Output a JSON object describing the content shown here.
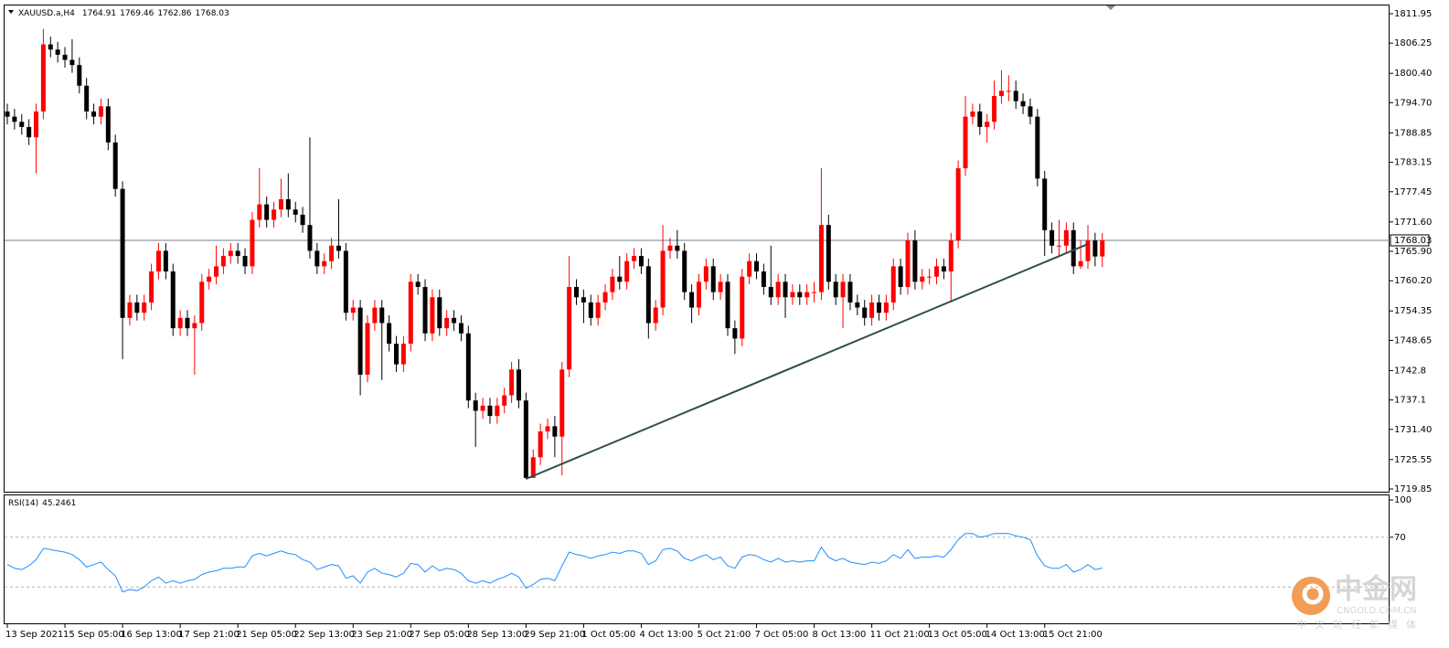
{
  "chart_data": [
    {
      "type": "candlestick",
      "symbol": "XAUUSD.a,H4",
      "categories": [
        "13 Sep 2021",
        null,
        null,
        null,
        null,
        null,
        null,
        null,
        "15 Sep 05:00",
        null,
        null,
        null,
        null,
        null,
        null,
        null,
        "16 Sep 13:00",
        null,
        null,
        null,
        null,
        null,
        null,
        null,
        "17 Sep 21:00",
        null,
        null,
        null,
        null,
        null,
        null,
        null,
        "21 Sep 05:00",
        null,
        null,
        null,
        null,
        null,
        null,
        null,
        "22 Sep 13:00",
        null,
        null,
        null,
        null,
        null,
        null,
        null,
        "23 Sep 21:00",
        null,
        null,
        null,
        null,
        null,
        null,
        null,
        "27 Sep 05:00",
        null,
        null,
        null,
        null,
        null,
        null,
        null,
        "28 Sep 13:00",
        null,
        null,
        null,
        null,
        null,
        null,
        null,
        "29 Sep 21:00",
        null,
        null,
        null,
        null,
        null,
        null,
        null,
        "1 Oct 05:00",
        null,
        null,
        null,
        null,
        null,
        null,
        null,
        "4 Oct 13:00",
        null,
        null,
        null,
        null,
        null,
        null,
        null,
        "5 Oct 21:00",
        null,
        null,
        null,
        null,
        null,
        null,
        null,
        "7 Oct 05:00",
        null,
        null,
        null,
        null,
        null,
        null,
        null,
        "8 Oct 13:00",
        null,
        null,
        null,
        null,
        null,
        null,
        null,
        "11 Oct 21:00",
        null,
        null,
        null,
        null,
        null,
        null,
        null,
        "13 Oct 05:00",
        null,
        null,
        null,
        null,
        null,
        null,
        null,
        "14 Oct 13:00",
        null,
        null,
        null,
        null,
        null,
        null,
        null,
        "15 Oct 21:00",
        null,
        null,
        null,
        null,
        null,
        null,
        null,
        null
      ],
      "open": [
        1793,
        1792,
        1791,
        1790,
        1788,
        1793,
        1806,
        1805,
        1804,
        1803,
        1802,
        1798,
        1793,
        1792,
        1794,
        1787,
        1778,
        1753,
        1756,
        1754,
        1756,
        1762,
        1766,
        1762,
        1751,
        1753,
        1751,
        1752,
        1760,
        1761,
        1763,
        1765,
        1766,
        1765,
        1763,
        1772,
        1775,
        1772,
        1774,
        1776,
        1774,
        1773,
        1771,
        1766,
        1763,
        1764,
        1767,
        1766,
        1754,
        1755,
        1742,
        1752,
        1755,
        1752,
        1748,
        1744,
        1748,
        1760,
        1759,
        1750,
        1757,
        1751,
        1753,
        1752,
        1750,
        1737,
        1735,
        1736,
        1734,
        1736,
        1738,
        1743,
        1737,
        1722,
        1726,
        1731,
        1732,
        1730,
        1743,
        1759,
        1757,
        1756,
        1753,
        1756,
        1758,
        1761,
        1760,
        1764,
        1765,
        1763,
        1752,
        1755,
        1766,
        1767,
        1766,
        1758,
        1755,
        1760,
        1763,
        1758,
        1760,
        1751,
        1749,
        1761,
        1764,
        1762,
        1759,
        1757,
        1760,
        1757,
        1758,
        1757,
        1758,
        1758,
        1771,
        1760,
        1757,
        1760,
        1756,
        1755,
        1753,
        1756,
        1754,
        1756,
        1763,
        1759,
        1768,
        1760,
        1761,
        1761,
        1763,
        1762,
        1768,
        1782,
        1792,
        1793,
        1790,
        1791,
        1796,
        1797,
        1797,
        1795,
        1794,
        1792,
        1780,
        1770,
        1767,
        1767,
        1770,
        1763,
        1764,
        1768,
        1764.91
      ],
      "high": [
        1794.5,
        1793.5,
        1792.5,
        1791.5,
        1794.5,
        1809,
        1807.5,
        1806.5,
        1805.5,
        1807,
        1803.5,
        1799.5,
        1794.5,
        1795.5,
        1795.5,
        1788.5,
        1779.5,
        1757.5,
        1757.5,
        1757.5,
        1763.5,
        1767.5,
        1767.5,
        1763.5,
        1754.5,
        1754.5,
        1753.5,
        1761.5,
        1762.5,
        1767,
        1766.5,
        1767.5,
        1767.5,
        1766.5,
        1773.5,
        1782,
        1776.5,
        1775.5,
        1780,
        1781,
        1775.5,
        1774.5,
        1788,
        1767.5,
        1765.5,
        1768.5,
        1776,
        1767.5,
        1756.5,
        1756.5,
        1753.5,
        1756.5,
        1756.5,
        1753.5,
        1749.5,
        1749.5,
        1761.5,
        1761.5,
        1760.5,
        1758.5,
        1758.5,
        1754.5,
        1754.5,
        1753.5,
        1751.5,
        1738.5,
        1737.5,
        1737.5,
        1737.5,
        1739.5,
        1744.5,
        1745,
        1738.5,
        1727.5,
        1732.5,
        1733.5,
        1734,
        1744.5,
        1765,
        1760.5,
        1758.5,
        1757.5,
        1757.5,
        1759.5,
        1762.5,
        1765,
        1765.5,
        1766.5,
        1766.5,
        1764.5,
        1756.5,
        1771,
        1768.5,
        1770,
        1767.5,
        1759.5,
        1761.5,
        1764.5,
        1764.5,
        1761.5,
        1761.5,
        1752.5,
        1762.5,
        1765.5,
        1765.5,
        1763.5,
        1767,
        1761.5,
        1761.5,
        1759.5,
        1759.5,
        1759.5,
        1760,
        1782,
        1773,
        1761.5,
        1761.5,
        1761.5,
        1757.5,
        1756.5,
        1757.5,
        1757.5,
        1757.5,
        1764.5,
        1764.5,
        1769.5,
        1770,
        1762.5,
        1762.5,
        1764.5,
        1764.5,
        1769.5,
        1783.5,
        1796,
        1794.5,
        1794.5,
        1792.5,
        1799,
        1801,
        1800,
        1799,
        1796.5,
        1795.5,
        1793.5,
        1781.5,
        1771.5,
        1772,
        1771.5,
        1771.5,
        1768,
        1771,
        1769.5,
        1769.46
      ],
      "low": [
        1790.5,
        1789.5,
        1788.5,
        1786.5,
        1781,
        1791.5,
        1803.5,
        1802.5,
        1801.5,
        1800.5,
        1796.5,
        1791.5,
        1790.5,
        1790.5,
        1785.5,
        1776.5,
        1745,
        1751.5,
        1752.5,
        1752.5,
        1754.5,
        1760.5,
        1760.5,
        1749.5,
        1749.5,
        1749.5,
        1742,
        1750.5,
        1758.5,
        1759.5,
        1761.5,
        1763.5,
        1763.5,
        1761.5,
        1761.5,
        1770.5,
        1770.5,
        1770.5,
        1772.5,
        1772.5,
        1771.5,
        1769.5,
        1764.5,
        1761.5,
        1761.5,
        1762.5,
        1764.5,
        1752.5,
        1752.5,
        1738,
        1740.5,
        1750.5,
        1741,
        1746.5,
        1742.5,
        1742.5,
        1746.5,
        1757.5,
        1748.5,
        1748.5,
        1749.5,
        1749.5,
        1750.5,
        1748.5,
        1735.5,
        1728,
        1733.5,
        1732.5,
        1732.5,
        1734.5,
        1736.5,
        1735.5,
        1721.8,
        1722,
        1724.5,
        1729.5,
        1726,
        1722.5,
        1741.5,
        1755.5,
        1752,
        1751.5,
        1751.5,
        1754.5,
        1756.5,
        1758.5,
        1758.5,
        1762.5,
        1761.5,
        1749,
        1750.5,
        1753.5,
        1764.5,
        1764.5,
        1756.5,
        1752,
        1753.5,
        1758.5,
        1756.5,
        1756.5,
        1749.5,
        1746,
        1747.5,
        1759.5,
        1760.5,
        1757.5,
        1755.5,
        1755.5,
        1753,
        1755.5,
        1755.5,
        1755.5,
        1756,
        1756.5,
        1758.5,
        1755.5,
        1751,
        1754.5,
        1753.5,
        1751.5,
        1751.5,
        1752.5,
        1752.5,
        1754.5,
        1757.5,
        1757.5,
        1758.5,
        1758.5,
        1759.5,
        1759.5,
        1760.5,
        1756,
        1766.5,
        1780.5,
        1790.5,
        1788.5,
        1787,
        1789.5,
        1794.5,
        1795,
        1793.5,
        1792.5,
        1790.5,
        1778.5,
        1765,
        1765.5,
        1765,
        1765.5,
        1761.5,
        1762.5,
        1762.5,
        1763,
        1762.86
      ],
      "close": [
        1792,
        1791,
        1790,
        1788,
        1793,
        1806,
        1805,
        1804,
        1803,
        1802,
        1798,
        1793,
        1792,
        1794,
        1787,
        1778,
        1753,
        1756,
        1754,
        1756,
        1762,
        1766,
        1762,
        1751,
        1753,
        1751,
        1752,
        1760,
        1761,
        1763,
        1765,
        1766,
        1765,
        1763,
        1772,
        1775,
        1772,
        1774,
        1776,
        1774,
        1773,
        1771,
        1766,
        1763,
        1764,
        1767,
        1766,
        1754,
        1755,
        1742,
        1752,
        1755,
        1752,
        1748,
        1744,
        1748,
        1760,
        1759,
        1750,
        1757,
        1751,
        1753,
        1752,
        1750,
        1737,
        1735,
        1736,
        1734,
        1736,
        1738,
        1743,
        1737,
        1722,
        1726,
        1731,
        1732,
        1730,
        1743,
        1759,
        1757,
        1756,
        1753,
        1756,
        1758,
        1761,
        1760,
        1764,
        1765,
        1763,
        1752,
        1755,
        1766,
        1767,
        1766,
        1758,
        1755,
        1760,
        1763,
        1758,
        1760,
        1751,
        1749,
        1761,
        1764,
        1762,
        1759,
        1757,
        1760,
        1757,
        1758,
        1757,
        1758,
        1758,
        1771,
        1760,
        1757,
        1760,
        1756,
        1755,
        1753,
        1756,
        1754,
        1756,
        1763,
        1759,
        1768,
        1760,
        1761,
        1761,
        1763,
        1762,
        1768,
        1782,
        1792,
        1793,
        1790,
        1791,
        1796,
        1797,
        1797,
        1795,
        1794,
        1792,
        1780,
        1770,
        1767,
        1767,
        1770,
        1763,
        1764,
        1768,
        1764.91,
        1768.03
      ],
      "up_color": "#ff0000",
      "down_color": "#000000",
      "price_line_color": "#708090",
      "ylim": [
        1719.85,
        1811.95
      ],
      "yticks": [
        1719.85,
        1725.55,
        {
          "value": 1731.4,
          "label": "1731.40"
        },
        1737.1,
        1742.8,
        1748.65,
        1754.35,
        {
          "value": 1760.2,
          "label": "1760.20"
        },
        {
          "value": 1765.9,
          "label": "1765.90"
        },
        {
          "value": 1771.6,
          "label": "1771.60"
        },
        1777.45,
        1783.15,
        1788.85,
        {
          "value": 1794.7,
          "label": "1794.70"
        },
        {
          "value": 1800.4,
          "label": "1800.40"
        },
        1806.25,
        1811.95
      ],
      "trendline": {
        "from_index": 72,
        "from_price": 1721.8,
        "to_index": 150,
        "to_price": 1767.3,
        "color": "#2f4f4f"
      }
    },
    {
      "type": "line",
      "name": "RSI(14)",
      "color": "#1e90ff",
      "values": [
        48,
        45,
        44,
        47,
        52,
        61,
        60,
        59,
        58,
        56,
        52,
        46,
        48,
        50,
        44,
        39,
        26,
        28,
        27,
        30,
        35,
        38,
        33,
        35,
        33,
        35,
        36,
        40,
        42,
        43,
        45,
        45,
        46,
        46,
        55,
        57,
        55,
        57,
        59,
        57,
        56,
        52,
        50,
        44,
        46,
        48,
        47,
        37,
        39,
        33,
        42,
        45,
        41,
        40,
        38,
        41,
        49,
        48,
        42,
        47,
        43,
        45,
        44,
        41,
        35,
        33,
        35,
        33,
        36,
        38,
        41,
        38,
        29,
        32,
        36,
        37,
        35,
        47,
        58,
        56,
        55,
        53,
        55,
        56,
        58,
        57,
        59,
        59,
        57,
        48,
        51,
        60,
        61,
        59,
        53,
        51,
        54,
        56,
        52,
        54,
        47,
        45,
        54,
        56,
        55,
        52,
        50,
        53,
        50,
        51,
        50,
        51,
        51,
        62,
        54,
        51,
        53,
        50,
        49,
        48,
        50,
        49,
        51,
        56,
        53,
        60,
        53,
        54,
        54,
        55,
        54,
        60,
        68,
        73,
        73,
        70,
        71,
        73,
        73,
        73,
        71,
        70,
        68,
        55,
        47,
        45,
        45,
        48,
        42,
        44,
        48,
        44,
        45.2461
      ],
      "ylim": [
        0,
        100
      ],
      "yticks": [
        100,
        70
      ],
      "levels": [
        70,
        30
      ]
    }
  ],
  "watermark": {
    "name": "中金网",
    "site": "CNGOLD.COM.CN",
    "slogan": "中文财经新媒体"
  }
}
